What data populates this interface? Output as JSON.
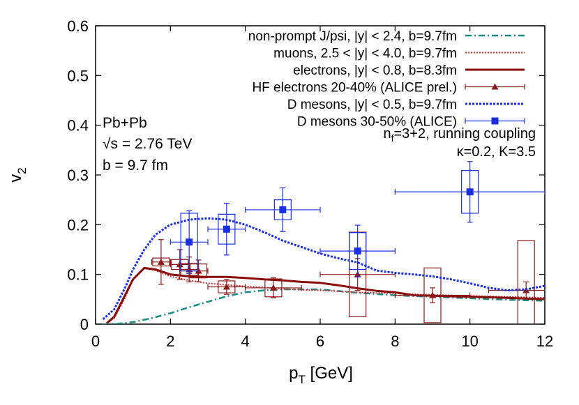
{
  "chart_data": {
    "type": "line",
    "xlabel": {
      "main": "p",
      "sub": "T",
      "rest": " [GeV]"
    },
    "ylabel": {
      "main": "v",
      "sub": "2"
    },
    "xlim": [
      0,
      12
    ],
    "ylim": [
      0,
      0.6
    ],
    "xticks": [
      "0",
      "2",
      "4",
      "6",
      "8",
      "10",
      "12"
    ],
    "yticks": [
      "0",
      "0.1",
      "0.2",
      "0.3",
      "0.4",
      "0.5",
      "0.6"
    ],
    "grid": false,
    "legend_position": "top-right",
    "annotations": {
      "system": "Pb+Pb",
      "energy": "√s = 2.76 TeV",
      "impact": "b = 9.7 fm",
      "nf_main": "n",
      "nf_sub": "f",
      "nf_rest": "=3+2, running coupling",
      "kappa": "κ=0.2, K=3.5"
    },
    "series": [
      {
        "name": "non-prompt J/psi, |y| < 2.4, b=9.7fm",
        "kind": "line",
        "color": "#1a8a86",
        "dash": "9,4,2,4",
        "width": 2.5,
        "points": [
          [
            0.2,
            0
          ],
          [
            0.6,
            0.001
          ],
          [
            1,
            0.004
          ],
          [
            1.5,
            0.012
          ],
          [
            2,
            0.022
          ],
          [
            2.5,
            0.034
          ],
          [
            3,
            0.045
          ],
          [
            3.5,
            0.056
          ],
          [
            4,
            0.064
          ],
          [
            4.5,
            0.068
          ],
          [
            5,
            0.07
          ],
          [
            6,
            0.07
          ],
          [
            7,
            0.063
          ],
          [
            8,
            0.058
          ],
          [
            9,
            0.055
          ],
          [
            10,
            0.052
          ],
          [
            11,
            0.049
          ],
          [
            12,
            0.047
          ]
        ]
      },
      {
        "name": "muons, 2.5 < |y| < 4.0, b=9.7fm",
        "kind": "line",
        "color": "#d12b2b",
        "dash": "2,2",
        "width": 2,
        "points": [
          [
            0.3,
            0.002
          ],
          [
            0.5,
            0.012
          ],
          [
            0.8,
            0.055
          ],
          [
            1,
            0.09
          ],
          [
            1.3,
            0.112
          ],
          [
            1.6,
            0.108
          ],
          [
            2,
            0.096
          ],
          [
            2.5,
            0.088
          ],
          [
            3,
            0.082
          ],
          [
            3.5,
            0.079
          ],
          [
            4,
            0.076
          ],
          [
            4.5,
            0.074
          ],
          [
            5,
            0.071
          ],
          [
            5.5,
            0.069
          ],
          [
            6,
            0.068
          ],
          [
            6.5,
            0.066
          ],
          [
            7,
            0.064
          ],
          [
            7.5,
            0.063
          ],
          [
            8,
            0.062
          ],
          [
            8.5,
            0.06
          ],
          [
            9,
            0.059
          ],
          [
            10,
            0.057
          ],
          [
            11,
            0.055
          ],
          [
            12,
            0.053
          ]
        ]
      },
      {
        "name": "electrons, |y| < 0.8, b=8.3fm",
        "kind": "line",
        "color": "#8b0a0a",
        "dash": "",
        "width": 3,
        "points": [
          [
            0.3,
            0.002
          ],
          [
            0.5,
            0.015
          ],
          [
            0.8,
            0.06
          ],
          [
            1,
            0.09
          ],
          [
            1.3,
            0.113
          ],
          [
            1.6,
            0.11
          ],
          [
            2,
            0.1
          ],
          [
            2.5,
            0.096
          ],
          [
            3,
            0.095
          ],
          [
            3.5,
            0.095
          ],
          [
            4,
            0.093
          ],
          [
            4.5,
            0.09
          ],
          [
            5,
            0.088
          ],
          [
            5.5,
            0.085
          ],
          [
            6,
            0.083
          ],
          [
            6.5,
            0.078
          ],
          [
            7,
            0.072
          ],
          [
            7.5,
            0.067
          ],
          [
            8,
            0.064
          ],
          [
            8.5,
            0.058
          ],
          [
            9,
            0.057
          ],
          [
            10,
            0.055
          ],
          [
            11,
            0.053
          ],
          [
            12,
            0.05
          ]
        ]
      },
      {
        "name": "HF electrons 20-40% (ALICE prel.)",
        "kind": "errorbars",
        "color": "#8b1a1a",
        "marker": "triangle",
        "points": [
          [
            1.75,
            0.125,
            0.045,
            0.25,
            0.008
          ],
          [
            2.25,
            0.12,
            0.03,
            0.25,
            0.01
          ],
          [
            2.5,
            0.11,
            0.025,
            0.25,
            0.012
          ],
          [
            2.75,
            0.107,
            0.022,
            0.25,
            0.014
          ],
          [
            3.5,
            0.075,
            0.015,
            0.5,
            0.012
          ],
          [
            4.75,
            0.073,
            0.02,
            0.75,
            0.018
          ],
          [
            7,
            0.1,
            0.032,
            1,
            0.085
          ],
          [
            9,
            0.058,
            0.015,
            1,
            0.055
          ],
          [
            11.5,
            0.068,
            0.017,
            1,
            0.1
          ]
        ]
      },
      {
        "name": "D mesons, |y| < 0.5, b=9.7fm",
        "kind": "line",
        "color": "#1a2ee6",
        "dash": "3,2",
        "width": 3,
        "points": [
          [
            0.2,
            0.01
          ],
          [
            0.5,
            0.03
          ],
          [
            0.8,
            0.075
          ],
          [
            1,
            0.11
          ],
          [
            1.3,
            0.15
          ],
          [
            1.6,
            0.18
          ],
          [
            2,
            0.2
          ],
          [
            2.5,
            0.21
          ],
          [
            3,
            0.213
          ],
          [
            3.5,
            0.21
          ],
          [
            4,
            0.2
          ],
          [
            4.5,
            0.185
          ],
          [
            5,
            0.168
          ],
          [
            5.5,
            0.155
          ],
          [
            6,
            0.142
          ],
          [
            6.5,
            0.132
          ],
          [
            7,
            0.124
          ],
          [
            7.5,
            0.108
          ],
          [
            8,
            0.103
          ],
          [
            8.5,
            0.1
          ],
          [
            9,
            0.096
          ],
          [
            9.5,
            0.09
          ],
          [
            10,
            0.082
          ],
          [
            10.5,
            0.073
          ],
          [
            11,
            0.068
          ],
          [
            11.5,
            0.07
          ],
          [
            12,
            0.077
          ]
        ]
      },
      {
        "name": "D mesons 30-50% (ALICE)",
        "kind": "errorbars",
        "color": "#1a2ee6",
        "marker": "square",
        "points": [
          [
            2.5,
            0.165,
            0.063,
            0.5,
            0.058
          ],
          [
            3.5,
            0.191,
            0.052,
            0.5,
            0.03
          ],
          [
            5,
            0.23,
            0.044,
            1,
            0.02
          ],
          [
            7,
            0.147,
            0.052,
            1,
            0.037
          ],
          [
            10,
            0.266,
            0.061,
            2,
            0.043
          ]
        ]
      }
    ]
  }
}
